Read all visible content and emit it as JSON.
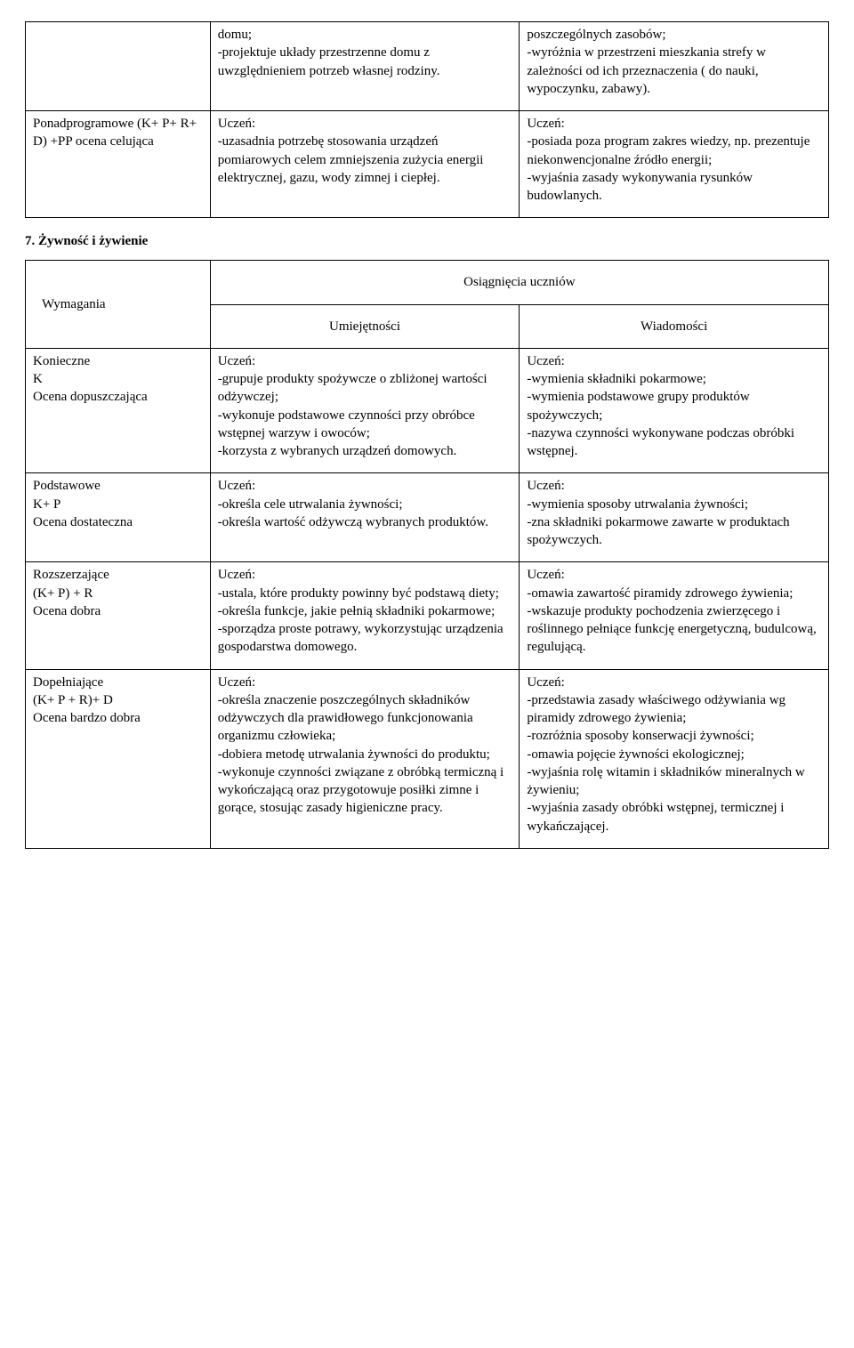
{
  "table1": {
    "row1": {
      "c1": "",
      "c2": "domu;\n-projektuje układy przestrzenne domu z uwzględnieniem potrzeb własnej rodziny.",
      "c3": "poszczególnych zasobów;\n-wyróżnia w przestrzeni mieszkania strefy w zależności od ich przeznaczenia ( do nauki, wypoczynku, zabawy)."
    },
    "row2": {
      "c1": "Ponadprogramowe (K+ P+ R+ D) +PP ocena celująca",
      "c2": "Uczeń:\n-uzasadnia potrzebę stosowania urządzeń pomiarowych celem zmniejszenia zużycia energii elektrycznej, gazu, wody zimnej i ciepłej.",
      "c3": "Uczeń:\n-posiada poza program zakres wiedzy, np. prezentuje niekonwencjonalne źródło energii;\n-wyjaśnia zasady wykonywania rysunków budowlanych."
    }
  },
  "section_heading": "7. Żywność i żywienie",
  "table2": {
    "hdr": {
      "wymagania": "Wymagania",
      "osiagniecia": "Osiągnięcia uczniów",
      "umiejetnosci": "Umiejętności",
      "wiadomosci": "Wiadomości"
    },
    "rows": [
      {
        "c1": "Konieczne\nK\nOcena dopuszczająca",
        "c2": "Uczeń:\n-grupuje produkty spożywcze o zbliżonej wartości odżywczej;\n-wykonuje podstawowe czynności przy obróbce wstępnej warzyw i owoców;\n-korzysta z wybranych urządzeń domowych.",
        "c3": "Uczeń:\n-wymienia składniki pokarmowe;\n-wymienia podstawowe grupy produktów spożywczych;\n-nazywa czynności wykonywane podczas obróbki wstępnej."
      },
      {
        "c1": "Podstawowe\nK+ P\nOcena dostateczna",
        "c2": "Uczeń:\n-określa cele utrwalania żywności;\n-określa wartość odżywczą wybranych produktów.",
        "c3": "Uczeń:\n-wymienia sposoby utrwalania żywności;\n-zna składniki pokarmowe zawarte w produktach spożywczych."
      },
      {
        "c1": "Rozszerzające\n(K+ P) + R\nOcena dobra",
        "c2": "Uczeń:\n-ustala, które produkty powinny być podstawą diety;\n-określa funkcje, jakie pełnią składniki pokarmowe;\n-sporządza proste potrawy, wykorzystując urządzenia gospodarstwa domowego.",
        "c3": "Uczeń:\n-omawia zawartość piramidy zdrowego żywienia;\n-wskazuje produkty pochodzenia zwierzęcego i roślinnego pełniące funkcję energetyczną, budulcową, regulującą."
      },
      {
        "c1": "Dopełniające\n(K+ P + R)+ D\nOcena bardzo dobra",
        "c2": "Uczeń:\n-określa znaczenie poszczególnych składników odżywczych  dla prawidłowego funkcjonowania organizmu człowieka;\n-dobiera metodę utrwalania żywności do produktu;\n-wykonuje czynności związane z obróbką termiczną i wykończającą oraz przygotowuje posiłki zimne i gorące, stosując zasady higieniczne pracy.",
        "c3": "Uczeń:\n-przedstawia zasady właściwego odżywiania wg piramidy zdrowego żywienia;\n-rozróżnia sposoby konserwacji żywności;\n-omawia pojęcie żywności ekologicznej;\n-wyjaśnia rolę witamin i składników mineralnych w żywieniu;\n-wyjaśnia zasady obróbki wstępnej, termicznej i wykańczającej."
      }
    ]
  }
}
